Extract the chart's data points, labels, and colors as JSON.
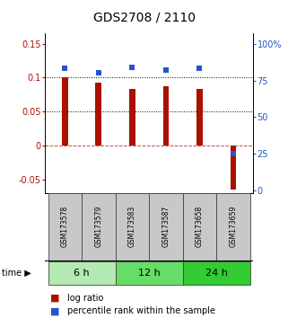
{
  "title": "GDS2708 / 2110",
  "samples": [
    "GSM173578",
    "GSM173579",
    "GSM173583",
    "GSM173587",
    "GSM173658",
    "GSM173659"
  ],
  "log_ratio": [
    0.1,
    0.093,
    0.083,
    0.088,
    0.083,
    -0.065
  ],
  "percentile_rank": [
    83,
    80,
    84,
    82,
    83,
    25
  ],
  "groups": [
    {
      "label": "6 h",
      "start": 0,
      "end": 2,
      "color": "#b2eab2"
    },
    {
      "label": "12 h",
      "start": 2,
      "end": 4,
      "color": "#66dd66"
    },
    {
      "label": "24 h",
      "start": 4,
      "end": 6,
      "color": "#33cc33"
    }
  ],
  "ylim_left": [
    -0.07,
    0.165
  ],
  "ylim_right": [
    -1.87,
    107
  ],
  "yticks_left": [
    -0.05,
    0,
    0.05,
    0.1,
    0.15
  ],
  "ytick_labels_left": [
    "-0.05",
    "0",
    "0.05",
    "0.1",
    "0.15"
  ],
  "yticks_right": [
    0,
    25,
    50,
    75,
    100
  ],
  "ytick_labels_right": [
    "0",
    "25",
    "50",
    "75",
    "100%"
  ],
  "bar_color": "#aa1100",
  "dot_color": "#2255cc",
  "hline_color": "#cc4444",
  "dotted_color": "#000000",
  "bar_width": 0.18,
  "title_fontsize": 10,
  "tick_fontsize": 7,
  "sample_fontsize": 5.5,
  "group_fontsize": 8,
  "legend_fontsize": 7
}
